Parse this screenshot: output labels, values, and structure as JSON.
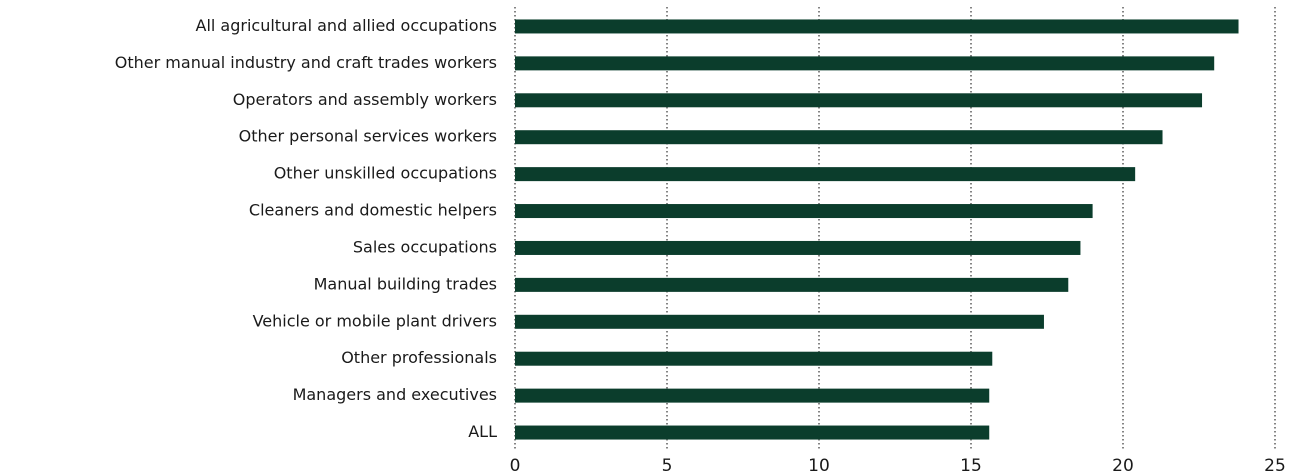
{
  "chart_data": {
    "type": "barh",
    "categories": [
      "All agricultural and allied occupations",
      "Other manual industry and craft trades workers",
      "Operators and assembly workers",
      "Other personal services workers",
      "Other unskilled occupations",
      "Cleaners and domestic helpers",
      "Sales occupations",
      "Manual building trades",
      "Vehicle or mobile plant drivers",
      "Other professionals",
      "Managers and executives",
      "ALL"
    ],
    "values": [
      23.8,
      23.0,
      22.6,
      21.3,
      20.4,
      19.0,
      18.6,
      18.2,
      17.4,
      15.7,
      15.6,
      15.6
    ],
    "color": "#0b3d2c",
    "xlim": [
      0,
      25
    ],
    "xticks": [
      0,
      5,
      10,
      15,
      20,
      25
    ],
    "grid": true
  }
}
